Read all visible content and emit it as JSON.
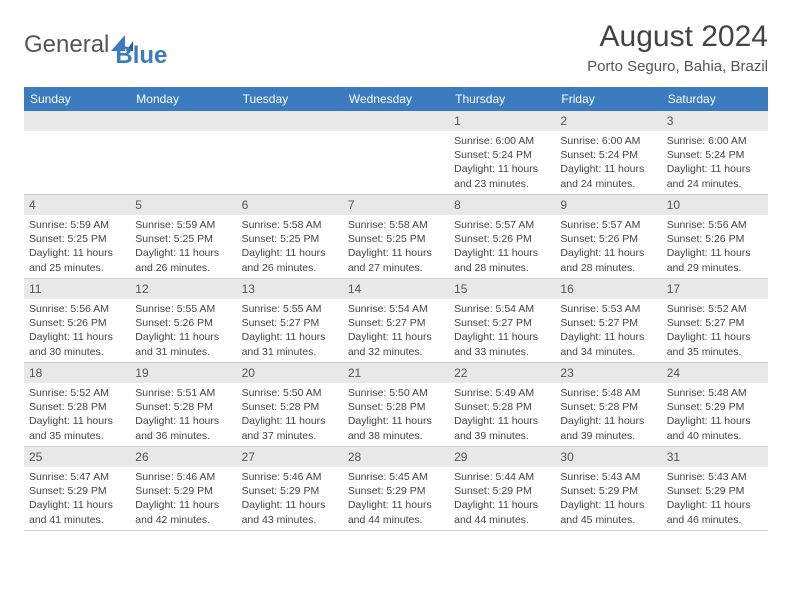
{
  "logo": {
    "text1": "General",
    "text2": "Blue"
  },
  "title": "August 2024",
  "location": "Porto Seguro, Bahia, Brazil",
  "header_color": "#3b7bbf",
  "grid_color": "#d0d0d0",
  "daynum_bg": "#e8e8e8",
  "dayNames": [
    "Sunday",
    "Monday",
    "Tuesday",
    "Wednesday",
    "Thursday",
    "Friday",
    "Saturday"
  ],
  "weeks": [
    [
      null,
      null,
      null,
      null,
      {
        "n": "1",
        "sr": "Sunrise: 6:00 AM",
        "ss": "Sunset: 5:24 PM",
        "dl": "Daylight: 11 hours and 23 minutes."
      },
      {
        "n": "2",
        "sr": "Sunrise: 6:00 AM",
        "ss": "Sunset: 5:24 PM",
        "dl": "Daylight: 11 hours and 24 minutes."
      },
      {
        "n": "3",
        "sr": "Sunrise: 6:00 AM",
        "ss": "Sunset: 5:24 PM",
        "dl": "Daylight: 11 hours and 24 minutes."
      }
    ],
    [
      {
        "n": "4",
        "sr": "Sunrise: 5:59 AM",
        "ss": "Sunset: 5:25 PM",
        "dl": "Daylight: 11 hours and 25 minutes."
      },
      {
        "n": "5",
        "sr": "Sunrise: 5:59 AM",
        "ss": "Sunset: 5:25 PM",
        "dl": "Daylight: 11 hours and 26 minutes."
      },
      {
        "n": "6",
        "sr": "Sunrise: 5:58 AM",
        "ss": "Sunset: 5:25 PM",
        "dl": "Daylight: 11 hours and 26 minutes."
      },
      {
        "n": "7",
        "sr": "Sunrise: 5:58 AM",
        "ss": "Sunset: 5:25 PM",
        "dl": "Daylight: 11 hours and 27 minutes."
      },
      {
        "n": "8",
        "sr": "Sunrise: 5:57 AM",
        "ss": "Sunset: 5:26 PM",
        "dl": "Daylight: 11 hours and 28 minutes."
      },
      {
        "n": "9",
        "sr": "Sunrise: 5:57 AM",
        "ss": "Sunset: 5:26 PM",
        "dl": "Daylight: 11 hours and 28 minutes."
      },
      {
        "n": "10",
        "sr": "Sunrise: 5:56 AM",
        "ss": "Sunset: 5:26 PM",
        "dl": "Daylight: 11 hours and 29 minutes."
      }
    ],
    [
      {
        "n": "11",
        "sr": "Sunrise: 5:56 AM",
        "ss": "Sunset: 5:26 PM",
        "dl": "Daylight: 11 hours and 30 minutes."
      },
      {
        "n": "12",
        "sr": "Sunrise: 5:55 AM",
        "ss": "Sunset: 5:26 PM",
        "dl": "Daylight: 11 hours and 31 minutes."
      },
      {
        "n": "13",
        "sr": "Sunrise: 5:55 AM",
        "ss": "Sunset: 5:27 PM",
        "dl": "Daylight: 11 hours and 31 minutes."
      },
      {
        "n": "14",
        "sr": "Sunrise: 5:54 AM",
        "ss": "Sunset: 5:27 PM",
        "dl": "Daylight: 11 hours and 32 minutes."
      },
      {
        "n": "15",
        "sr": "Sunrise: 5:54 AM",
        "ss": "Sunset: 5:27 PM",
        "dl": "Daylight: 11 hours and 33 minutes."
      },
      {
        "n": "16",
        "sr": "Sunrise: 5:53 AM",
        "ss": "Sunset: 5:27 PM",
        "dl": "Daylight: 11 hours and 34 minutes."
      },
      {
        "n": "17",
        "sr": "Sunrise: 5:52 AM",
        "ss": "Sunset: 5:27 PM",
        "dl": "Daylight: 11 hours and 35 minutes."
      }
    ],
    [
      {
        "n": "18",
        "sr": "Sunrise: 5:52 AM",
        "ss": "Sunset: 5:28 PM",
        "dl": "Daylight: 11 hours and 35 minutes."
      },
      {
        "n": "19",
        "sr": "Sunrise: 5:51 AM",
        "ss": "Sunset: 5:28 PM",
        "dl": "Daylight: 11 hours and 36 minutes."
      },
      {
        "n": "20",
        "sr": "Sunrise: 5:50 AM",
        "ss": "Sunset: 5:28 PM",
        "dl": "Daylight: 11 hours and 37 minutes."
      },
      {
        "n": "21",
        "sr": "Sunrise: 5:50 AM",
        "ss": "Sunset: 5:28 PM",
        "dl": "Daylight: 11 hours and 38 minutes."
      },
      {
        "n": "22",
        "sr": "Sunrise: 5:49 AM",
        "ss": "Sunset: 5:28 PM",
        "dl": "Daylight: 11 hours and 39 minutes."
      },
      {
        "n": "23",
        "sr": "Sunrise: 5:48 AM",
        "ss": "Sunset: 5:28 PM",
        "dl": "Daylight: 11 hours and 39 minutes."
      },
      {
        "n": "24",
        "sr": "Sunrise: 5:48 AM",
        "ss": "Sunset: 5:29 PM",
        "dl": "Daylight: 11 hours and 40 minutes."
      }
    ],
    [
      {
        "n": "25",
        "sr": "Sunrise: 5:47 AM",
        "ss": "Sunset: 5:29 PM",
        "dl": "Daylight: 11 hours and 41 minutes."
      },
      {
        "n": "26",
        "sr": "Sunrise: 5:46 AM",
        "ss": "Sunset: 5:29 PM",
        "dl": "Daylight: 11 hours and 42 minutes."
      },
      {
        "n": "27",
        "sr": "Sunrise: 5:46 AM",
        "ss": "Sunset: 5:29 PM",
        "dl": "Daylight: 11 hours and 43 minutes."
      },
      {
        "n": "28",
        "sr": "Sunrise: 5:45 AM",
        "ss": "Sunset: 5:29 PM",
        "dl": "Daylight: 11 hours and 44 minutes."
      },
      {
        "n": "29",
        "sr": "Sunrise: 5:44 AM",
        "ss": "Sunset: 5:29 PM",
        "dl": "Daylight: 11 hours and 44 minutes."
      },
      {
        "n": "30",
        "sr": "Sunrise: 5:43 AM",
        "ss": "Sunset: 5:29 PM",
        "dl": "Daylight: 11 hours and 45 minutes."
      },
      {
        "n": "31",
        "sr": "Sunrise: 5:43 AM",
        "ss": "Sunset: 5:29 PM",
        "dl": "Daylight: 11 hours and 46 minutes."
      }
    ]
  ]
}
